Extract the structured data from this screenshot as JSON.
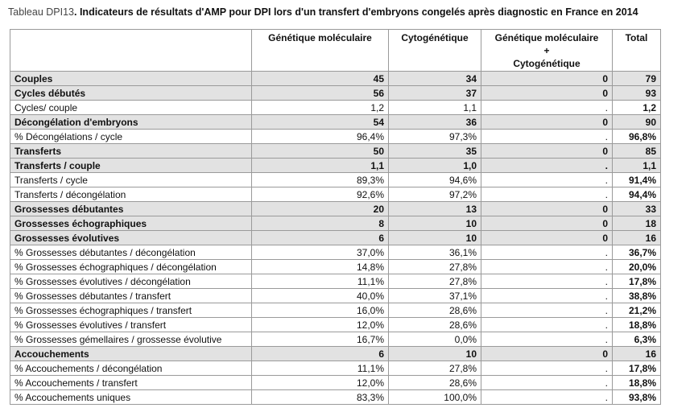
{
  "header": {
    "label": "Tableau DPI13",
    "title": ". Indicateurs de résultats d'AMP pour DPI lors d'un transfert d'embryons congelés après diagnostic en France en 2014"
  },
  "table": {
    "columns": [
      [],
      [
        "Génétique moléculaire"
      ],
      [
        "Cytogénétique"
      ],
      [
        "Génétique moléculaire",
        "+",
        "Cytogénétique"
      ],
      [
        "Total"
      ]
    ],
    "rows": [
      {
        "style": "bold",
        "cells": [
          "Couples",
          "45",
          "34",
          "0",
          "79"
        ]
      },
      {
        "style": "bold",
        "cells": [
          "Cycles débutés",
          "56",
          "37",
          "0",
          "93"
        ]
      },
      {
        "style": "normal",
        "cells": [
          "Cycles/ couple",
          "1,2",
          "1,1",
          ".",
          "1,2"
        ]
      },
      {
        "style": "bold",
        "cells": [
          "Décongélation d'embryons",
          "54",
          "36",
          "0",
          "90"
        ]
      },
      {
        "style": "normal",
        "cells": [
          "% Décongélations / cycle",
          "96,4%",
          "97,3%",
          ".",
          "96,8%"
        ]
      },
      {
        "style": "bold",
        "cells": [
          "Transferts",
          "50",
          "35",
          "0",
          "85"
        ]
      },
      {
        "style": "bold",
        "cells": [
          "Transferts / couple",
          "1,1",
          "1,0",
          ".",
          "1,1"
        ]
      },
      {
        "style": "normal",
        "cells": [
          "Transferts / cycle",
          "89,3%",
          "94,6%",
          ".",
          "91,4%"
        ]
      },
      {
        "style": "normal",
        "cells": [
          "Transferts / décongélation",
          "92,6%",
          "97,2%",
          ".",
          "94,4%"
        ]
      },
      {
        "style": "bold",
        "cells": [
          "Grossesses débutantes",
          "20",
          "13",
          "0",
          "33"
        ]
      },
      {
        "style": "bold",
        "cells": [
          "Grossesses échographiques",
          "8",
          "10",
          "0",
          "18"
        ]
      },
      {
        "style": "bold",
        "cells": [
          "Grossesses évolutives",
          "6",
          "10",
          "0",
          "16"
        ]
      },
      {
        "style": "normal",
        "cells": [
          "% Grossesses débutantes / décongélation",
          "37,0%",
          "36,1%",
          ".",
          "36,7%"
        ]
      },
      {
        "style": "normal",
        "cells": [
          "% Grossesses échographiques / décongélation",
          "14,8%",
          "27,8%",
          ".",
          "20,0%"
        ]
      },
      {
        "style": "normal",
        "cells": [
          "% Grossesses évolutives / décongélation",
          "11,1%",
          "27,8%",
          ".",
          "17,8%"
        ]
      },
      {
        "style": "normal",
        "cells": [
          "% Grossesses débutantes / transfert",
          "40,0%",
          "37,1%",
          ".",
          "38,8%"
        ]
      },
      {
        "style": "normal",
        "cells": [
          "% Grossesses échographiques / transfert",
          "16,0%",
          "28,6%",
          ".",
          "21,2%"
        ]
      },
      {
        "style": "normal",
        "cells": [
          "% Grossesses évolutives / transfert",
          "12,0%",
          "28,6%",
          ".",
          "18,8%"
        ]
      },
      {
        "style": "normal",
        "cells": [
          "% Grossesses gémellaires / grossesse évolutive",
          "16,7%",
          "0,0%",
          ".",
          "6,3%"
        ]
      },
      {
        "style": "bold",
        "cells": [
          "Accouchements",
          "6",
          "10",
          "0",
          "16"
        ]
      },
      {
        "style": "normal",
        "cells": [
          "% Accouchements / décongélation",
          "11,1%",
          "27,8%",
          ".",
          "17,8%"
        ]
      },
      {
        "style": "normal",
        "cells": [
          "% Accouchements / transfert",
          "12,0%",
          "28,6%",
          ".",
          "18,8%"
        ]
      },
      {
        "style": "normal",
        "cells": [
          "% Accouchements uniques",
          "83,3%",
          "100,0%",
          ".",
          "93,8%"
        ]
      }
    ]
  }
}
